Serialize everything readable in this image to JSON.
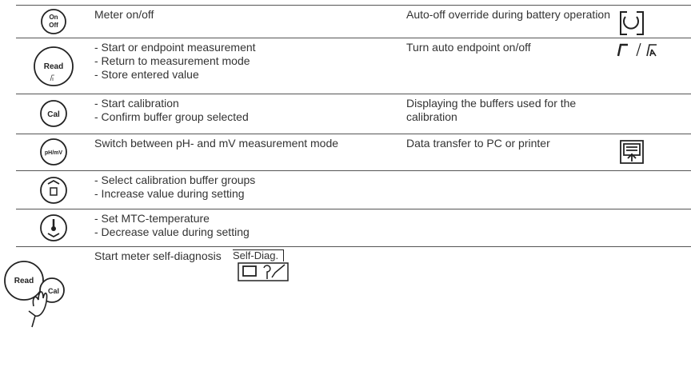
{
  "rows": [
    {
      "button": [
        "On",
        "Off"
      ],
      "lines": [
        "Meter on/off"
      ],
      "right": "Auto-off override during battery operation"
    },
    {
      "button": [
        "Read"
      ],
      "lines": [
        "- Start or endpoint measurement",
        "- Return to measurement mode",
        "- Store entered value"
      ],
      "right": "Turn auto endpoint on/off"
    },
    {
      "button": [
        "Cal"
      ],
      "lines": [
        "- Start calibration",
        "- Confirm buffer group selected"
      ],
      "right": "Displaying the buffers used for the calibration"
    },
    {
      "button": [
        "pH/mV"
      ],
      "lines": [
        "Switch between pH- and mV measurement mode"
      ],
      "right": "Data transfer to PC or printer"
    },
    {
      "lines": [
        "- Select calibration buffer groups",
        "- Increase value during setting"
      ]
    },
    {
      "lines": [
        "- Set MTC-temperature",
        "- Decrease value during setting"
      ]
    },
    {
      "button": [
        "Read",
        "Cal"
      ],
      "lines": [
        "Start meter self-diagnosis"
      ],
      "badge": "Self-Diag."
    }
  ]
}
